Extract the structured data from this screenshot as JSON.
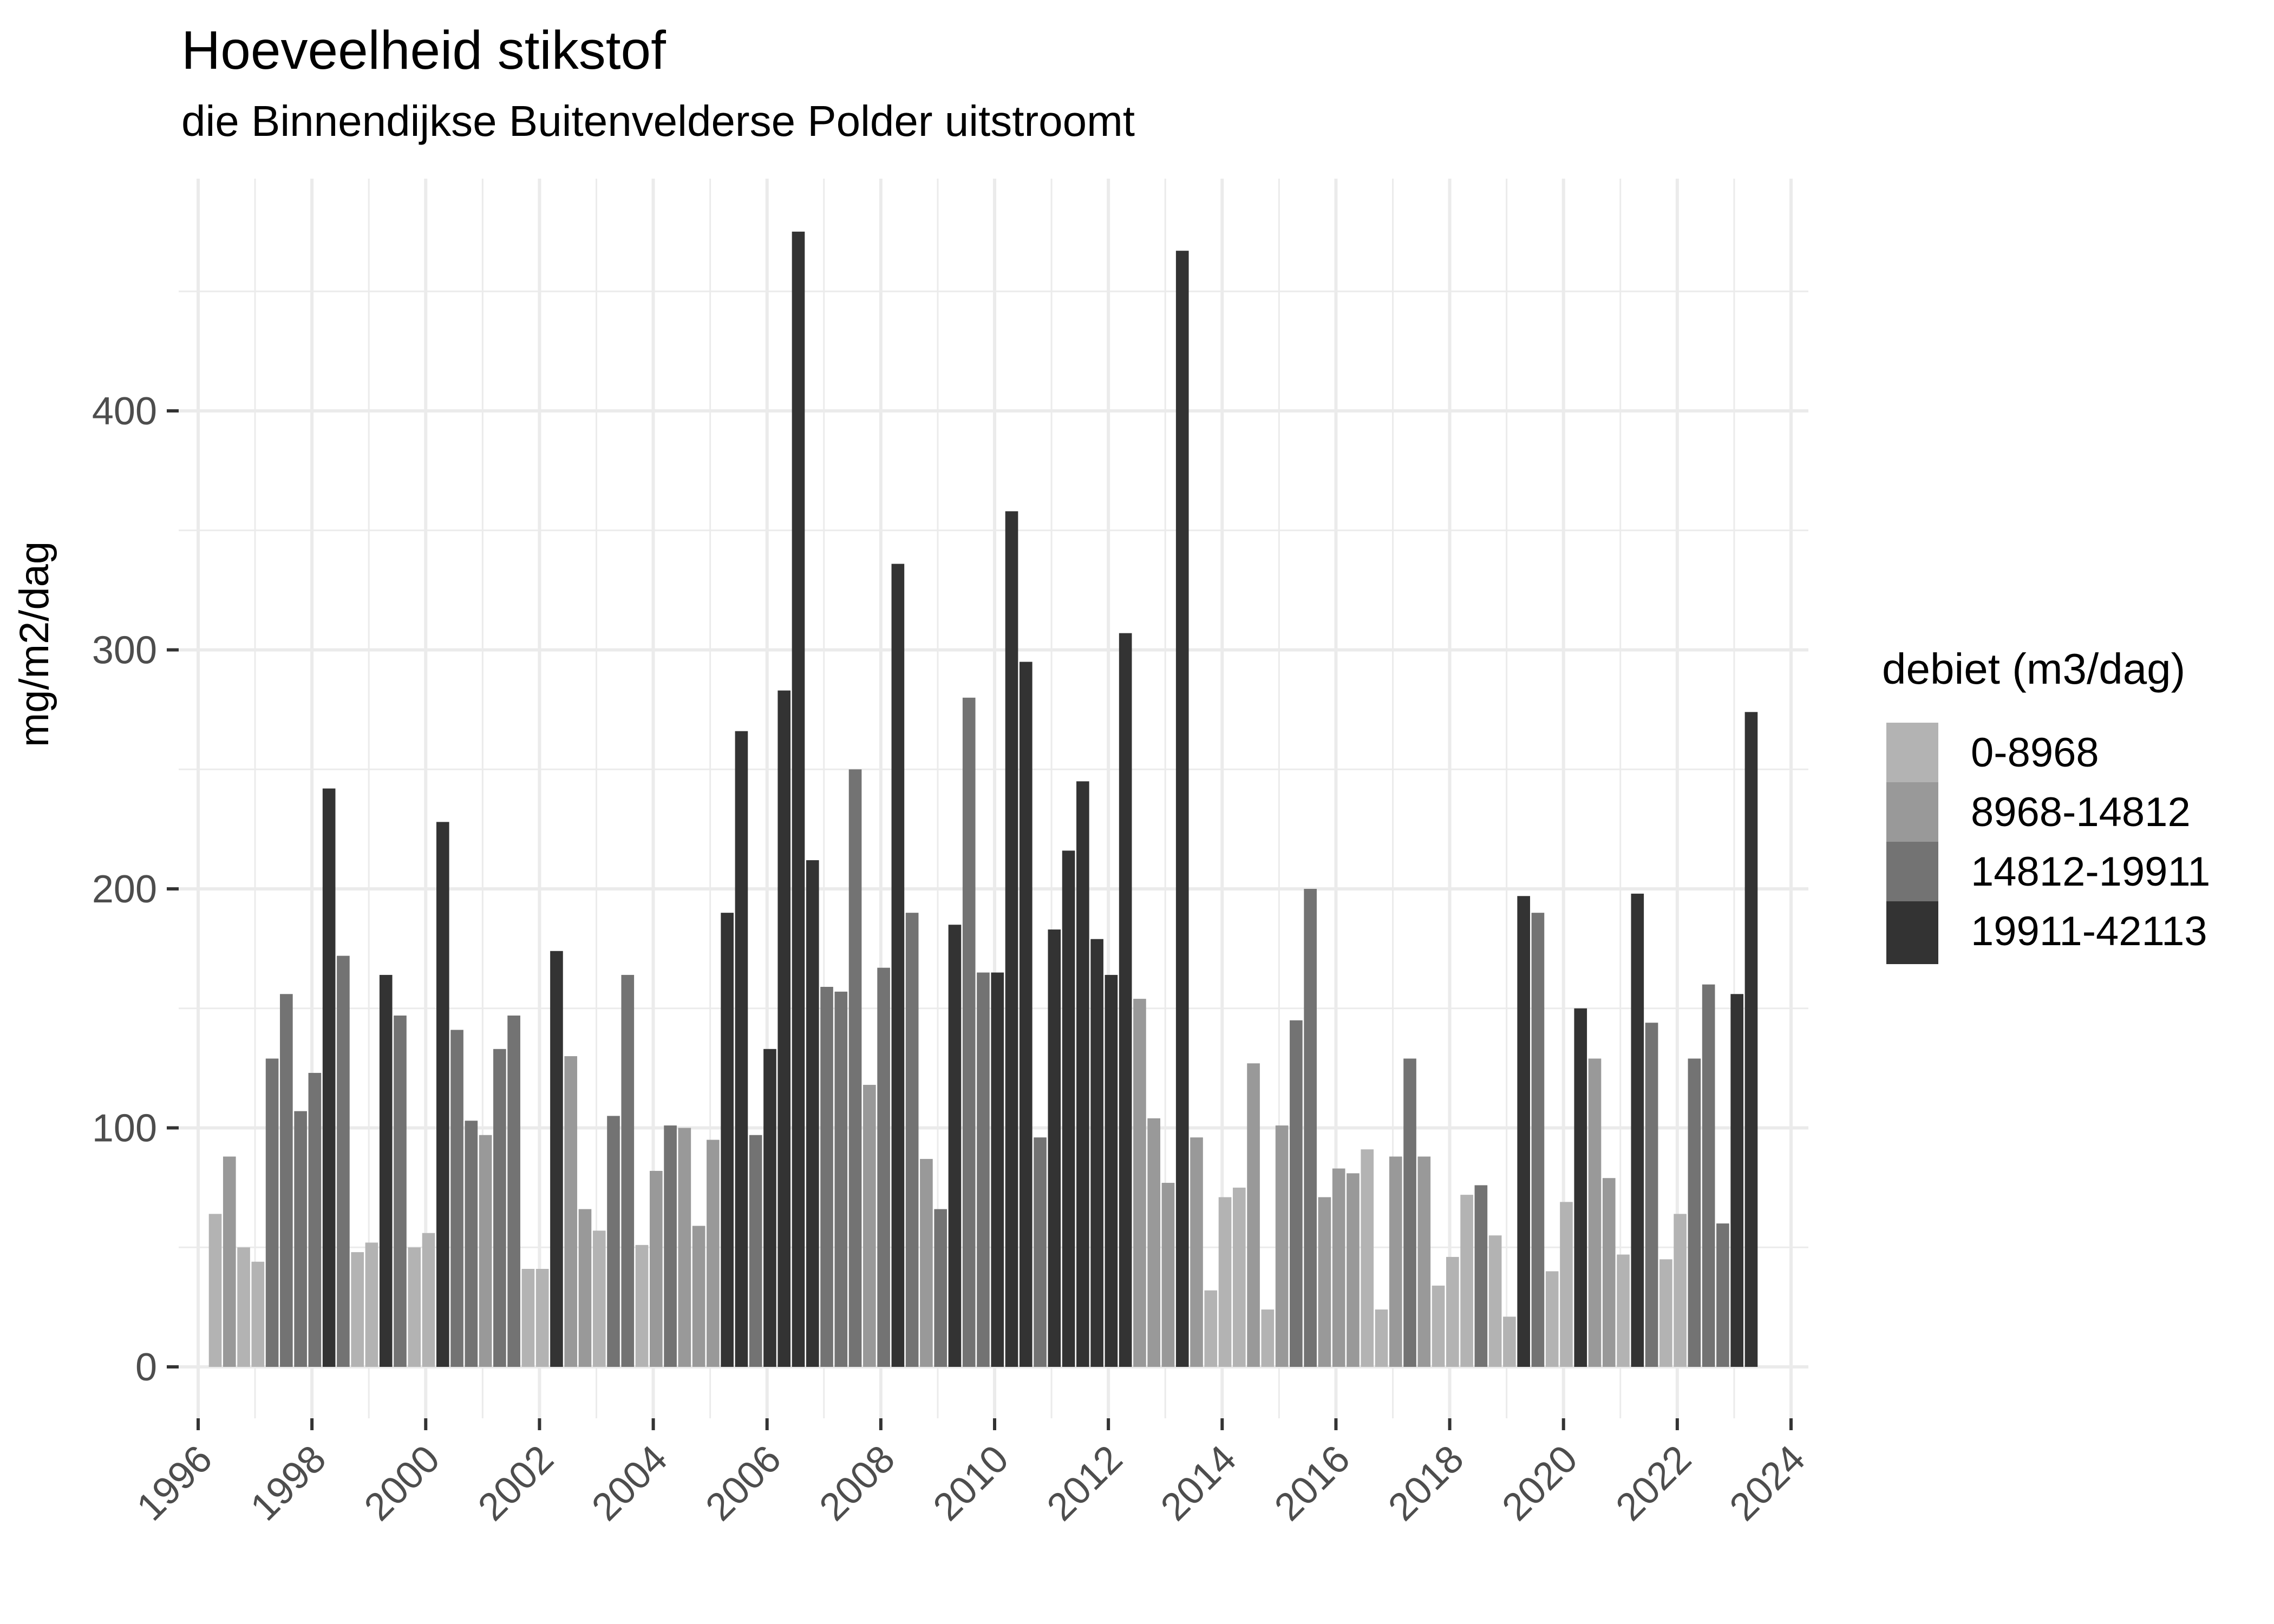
{
  "title": "Hoeveelheid stikstof",
  "subtitle": "die Binnendijkse Buitenvelderse Polder uitstroomt",
  "legend": {
    "title": "debiet (m3/dag)",
    "items": [
      {
        "label": "0-8968",
        "color": "#B3B3B3"
      },
      {
        "label": "8968-14812",
        "color": "#999999"
      },
      {
        "label": "14812-19911",
        "color": "#737373"
      },
      {
        "label": "19911-42113",
        "color": "#333333"
      }
    ]
  },
  "chart_data": {
    "type": "bar",
    "title": "Hoeveelheid stikstof",
    "subtitle": "die Binnendijkse Buitenvelderse Polder uitstroomt",
    "xlabel": "",
    "ylabel": "mg/m2/dag",
    "xlim": [
      1996,
      2024
    ],
    "ylim": [
      0,
      480
    ],
    "x_ticks": [
      "1996",
      "1998",
      "2000",
      "2002",
      "2004",
      "2006",
      "2008",
      "2010",
      "2012",
      "2014",
      "2016",
      "2018",
      "2020",
      "2022",
      "2024"
    ],
    "y_ticks": [
      0,
      100,
      200,
      300,
      400
    ],
    "grid": true,
    "legend_position": "right",
    "legend_title": "debiet (m3/dag)",
    "categories_legend": [
      "0-8968",
      "8968-14812",
      "14812-19911",
      "19911-42113"
    ],
    "bars": [
      {
        "x": 1996.3,
        "y": 64,
        "cls": 0
      },
      {
        "x": 1996.55,
        "y": 88,
        "cls": 1
      },
      {
        "x": 1996.8,
        "y": 50,
        "cls": 0
      },
      {
        "x": 1997.05,
        "y": 44,
        "cls": 0
      },
      {
        "x": 1997.3,
        "y": 129,
        "cls": 2
      },
      {
        "x": 1997.55,
        "y": 156,
        "cls": 2
      },
      {
        "x": 1997.8,
        "y": 107,
        "cls": 2
      },
      {
        "x": 1998.05,
        "y": 123,
        "cls": 2
      },
      {
        "x": 1998.3,
        "y": 242,
        "cls": 3
      },
      {
        "x": 1998.55,
        "y": 172,
        "cls": 2
      },
      {
        "x": 1998.8,
        "y": 48,
        "cls": 0
      },
      {
        "x": 1999.05,
        "y": 52,
        "cls": 0
      },
      {
        "x": 1999.3,
        "y": 164,
        "cls": 3
      },
      {
        "x": 1999.55,
        "y": 147,
        "cls": 2
      },
      {
        "x": 1999.8,
        "y": 50,
        "cls": 0
      },
      {
        "x": 2000.05,
        "y": 56,
        "cls": 0
      },
      {
        "x": 2000.3,
        "y": 228,
        "cls": 3
      },
      {
        "x": 2000.55,
        "y": 141,
        "cls": 2
      },
      {
        "x": 2000.8,
        "y": 103,
        "cls": 2
      },
      {
        "x": 2001.05,
        "y": 97,
        "cls": 1
      },
      {
        "x": 2001.3,
        "y": 133,
        "cls": 2
      },
      {
        "x": 2001.55,
        "y": 147,
        "cls": 2
      },
      {
        "x": 2001.8,
        "y": 41,
        "cls": 0
      },
      {
        "x": 2002.05,
        "y": 41,
        "cls": 0
      },
      {
        "x": 2002.3,
        "y": 174,
        "cls": 3
      },
      {
        "x": 2002.55,
        "y": 130,
        "cls": 1
      },
      {
        "x": 2002.8,
        "y": 66,
        "cls": 1
      },
      {
        "x": 2003.05,
        "y": 57,
        "cls": 0
      },
      {
        "x": 2003.3,
        "y": 105,
        "cls": 2
      },
      {
        "x": 2003.55,
        "y": 164,
        "cls": 2
      },
      {
        "x": 2003.8,
        "y": 51,
        "cls": 0
      },
      {
        "x": 2004.05,
        "y": 82,
        "cls": 1
      },
      {
        "x": 2004.3,
        "y": 101,
        "cls": 2
      },
      {
        "x": 2004.55,
        "y": 100,
        "cls": 1
      },
      {
        "x": 2004.8,
        "y": 59,
        "cls": 1
      },
      {
        "x": 2005.05,
        "y": 95,
        "cls": 1
      },
      {
        "x": 2005.3,
        "y": 190,
        "cls": 3
      },
      {
        "x": 2005.55,
        "y": 266,
        "cls": 3
      },
      {
        "x": 2005.8,
        "y": 97,
        "cls": 2
      },
      {
        "x": 2006.05,
        "y": 133,
        "cls": 3
      },
      {
        "x": 2006.3,
        "y": 283,
        "cls": 3
      },
      {
        "x": 2006.55,
        "y": 475,
        "cls": 3
      },
      {
        "x": 2006.8,
        "y": 212,
        "cls": 3
      },
      {
        "x": 2007.05,
        "y": 159,
        "cls": 2
      },
      {
        "x": 2007.3,
        "y": 157,
        "cls": 2
      },
      {
        "x": 2007.55,
        "y": 250,
        "cls": 2
      },
      {
        "x": 2007.8,
        "y": 118,
        "cls": 1
      },
      {
        "x": 2008.05,
        "y": 167,
        "cls": 2
      },
      {
        "x": 2008.3,
        "y": 336,
        "cls": 3
      },
      {
        "x": 2008.55,
        "y": 190,
        "cls": 2
      },
      {
        "x": 2008.8,
        "y": 87,
        "cls": 1
      },
      {
        "x": 2009.05,
        "y": 66,
        "cls": 2
      },
      {
        "x": 2009.3,
        "y": 185,
        "cls": 3
      },
      {
        "x": 2009.55,
        "y": 280,
        "cls": 2
      },
      {
        "x": 2009.8,
        "y": 165,
        "cls": 2
      },
      {
        "x": 2010.05,
        "y": 165,
        "cls": 3
      },
      {
        "x": 2010.3,
        "y": 358,
        "cls": 3
      },
      {
        "x": 2010.55,
        "y": 295,
        "cls": 3
      },
      {
        "x": 2010.8,
        "y": 96,
        "cls": 2
      },
      {
        "x": 2011.05,
        "y": 183,
        "cls": 3
      },
      {
        "x": 2011.3,
        "y": 216,
        "cls": 3
      },
      {
        "x": 2011.55,
        "y": 245,
        "cls": 3
      },
      {
        "x": 2011.8,
        "y": 179,
        "cls": 3
      },
      {
        "x": 2012.05,
        "y": 164,
        "cls": 3
      },
      {
        "x": 2012.3,
        "y": 307,
        "cls": 3
      },
      {
        "x": 2012.55,
        "y": 154,
        "cls": 1
      },
      {
        "x": 2012.8,
        "y": 104,
        "cls": 1
      },
      {
        "x": 2013.05,
        "y": 77,
        "cls": 1
      },
      {
        "x": 2013.3,
        "y": 467,
        "cls": 3
      },
      {
        "x": 2013.55,
        "y": 96,
        "cls": 1
      },
      {
        "x": 2013.8,
        "y": 32,
        "cls": 0
      },
      {
        "x": 2014.05,
        "y": 71,
        "cls": 0
      },
      {
        "x": 2014.3,
        "y": 75,
        "cls": 0
      },
      {
        "x": 2014.55,
        "y": 127,
        "cls": 1
      },
      {
        "x": 2014.8,
        "y": 24,
        "cls": 0
      },
      {
        "x": 2015.05,
        "y": 101,
        "cls": 1
      },
      {
        "x": 2015.3,
        "y": 145,
        "cls": 2
      },
      {
        "x": 2015.55,
        "y": 200,
        "cls": 2
      },
      {
        "x": 2015.8,
        "y": 71,
        "cls": 1
      },
      {
        "x": 2016.05,
        "y": 83,
        "cls": 1
      },
      {
        "x": 2016.3,
        "y": 81,
        "cls": 1
      },
      {
        "x": 2016.55,
        "y": 91,
        "cls": 0
      },
      {
        "x": 2016.8,
        "y": 24,
        "cls": 0
      },
      {
        "x": 2017.05,
        "y": 88,
        "cls": 1
      },
      {
        "x": 2017.3,
        "y": 129,
        "cls": 2
      },
      {
        "x": 2017.55,
        "y": 88,
        "cls": 1
      },
      {
        "x": 2017.8,
        "y": 34,
        "cls": 0
      },
      {
        "x": 2018.05,
        "y": 46,
        "cls": 0
      },
      {
        "x": 2018.3,
        "y": 72,
        "cls": 0
      },
      {
        "x": 2018.55,
        "y": 76,
        "cls": 2
      },
      {
        "x": 2018.8,
        "y": 55,
        "cls": 0
      },
      {
        "x": 2019.05,
        "y": 21,
        "cls": 0
      },
      {
        "x": 2019.3,
        "y": 197,
        "cls": 3
      },
      {
        "x": 2019.55,
        "y": 190,
        "cls": 2
      },
      {
        "x": 2019.8,
        "y": 40,
        "cls": 0
      },
      {
        "x": 2020.05,
        "y": 69,
        "cls": 0
      },
      {
        "x": 2020.3,
        "y": 150,
        "cls": 3
      },
      {
        "x": 2020.55,
        "y": 129,
        "cls": 1
      },
      {
        "x": 2020.8,
        "y": 79,
        "cls": 1
      },
      {
        "x": 2021.05,
        "y": 47,
        "cls": 0
      },
      {
        "x": 2021.3,
        "y": 198,
        "cls": 3
      },
      {
        "x": 2021.55,
        "y": 144,
        "cls": 2
      },
      {
        "x": 2021.8,
        "y": 45,
        "cls": 0
      },
      {
        "x": 2022.05,
        "y": 64,
        "cls": 0
      },
      {
        "x": 2022.3,
        "y": 129,
        "cls": 2
      },
      {
        "x": 2022.55,
        "y": 160,
        "cls": 2
      },
      {
        "x": 2022.8,
        "y": 60,
        "cls": 2
      },
      {
        "x": 2023.05,
        "y": 156,
        "cls": 3
      },
      {
        "x": 2023.3,
        "y": 274,
        "cls": 3
      }
    ]
  }
}
